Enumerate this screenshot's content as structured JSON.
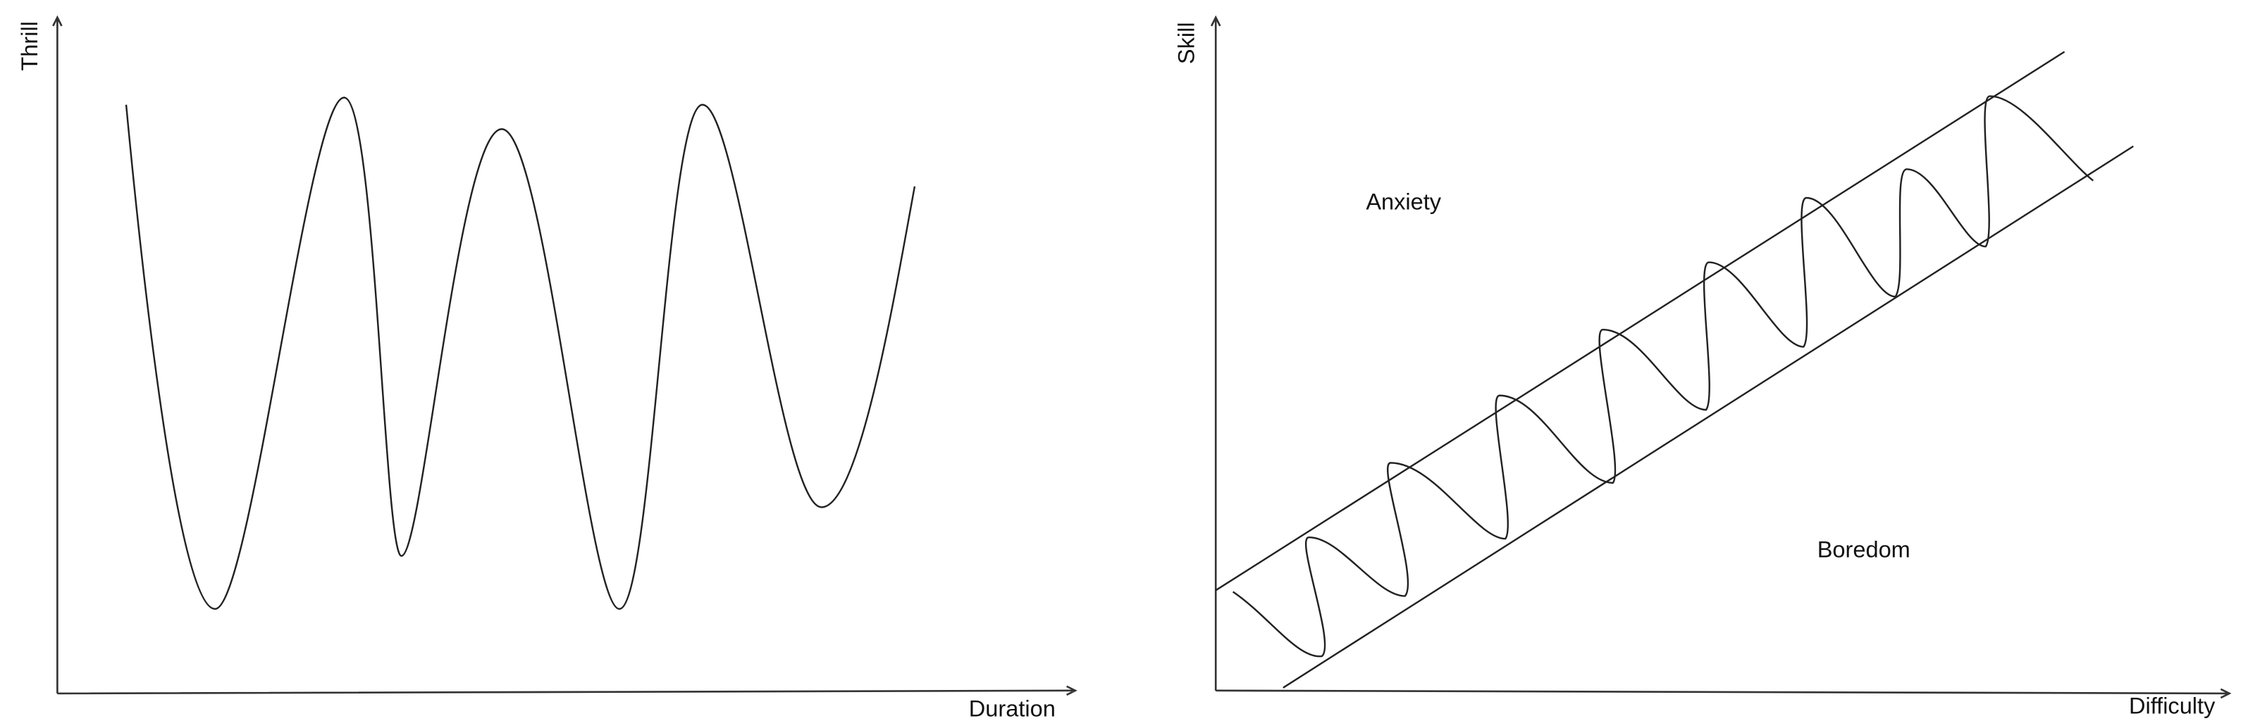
{
  "left": {
    "y_label": "Thrill",
    "x_label": "Duration"
  },
  "right": {
    "y_label": "Skill",
    "x_label": "Difficulty",
    "regions": [
      "Anxiety",
      "Boredom"
    ]
  }
}
